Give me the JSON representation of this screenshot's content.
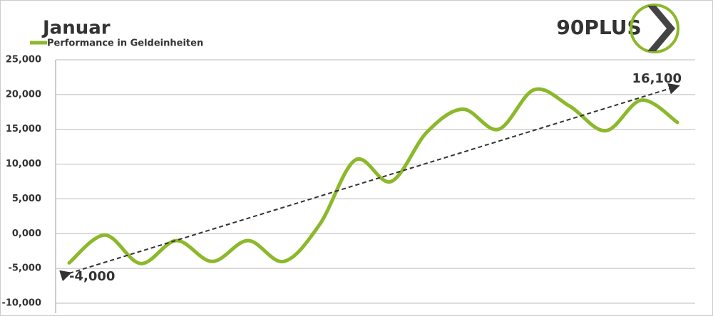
{
  "chart_data": {
    "type": "line",
    "title": "Januar",
    "logo": "90PLUS",
    "categories": [
      null,
      null,
      null,
      null,
      null,
      null,
      null,
      null,
      null,
      null,
      null,
      null,
      null,
      null,
      null,
      null,
      null,
      null
    ],
    "series": [
      {
        "name": "Performance in Geldeinheiten",
        "color": "#8cb82b",
        "values": [
          -4200,
          -200,
          -4300,
          -1000,
          -4000,
          -1000,
          -4000,
          1300,
          10600,
          7500,
          14600,
          17900,
          15000,
          20700,
          18300,
          14800,
          19200,
          16000
        ]
      }
    ],
    "trend": {
      "color": "#333333",
      "values": [
        -5700,
        21200
      ]
    },
    "annotations": [
      "-4,000",
      "16,100"
    ],
    "ylim": [
      -10000,
      25000
    ],
    "yticks": [
      {
        "value": -10000,
        "label": "-10,000"
      },
      {
        "value": -5000,
        "label": "-5,000"
      },
      {
        "value": 0,
        "label": "0,000"
      },
      {
        "value": 5000,
        "label": "5,000"
      },
      {
        "value": 10000,
        "label": "10,000"
      },
      {
        "value": 15000,
        "label": "15,000"
      },
      {
        "value": 20000,
        "label": "20,000"
      },
      {
        "value": 25000,
        "label": "25,000"
      }
    ],
    "grid": true
  }
}
